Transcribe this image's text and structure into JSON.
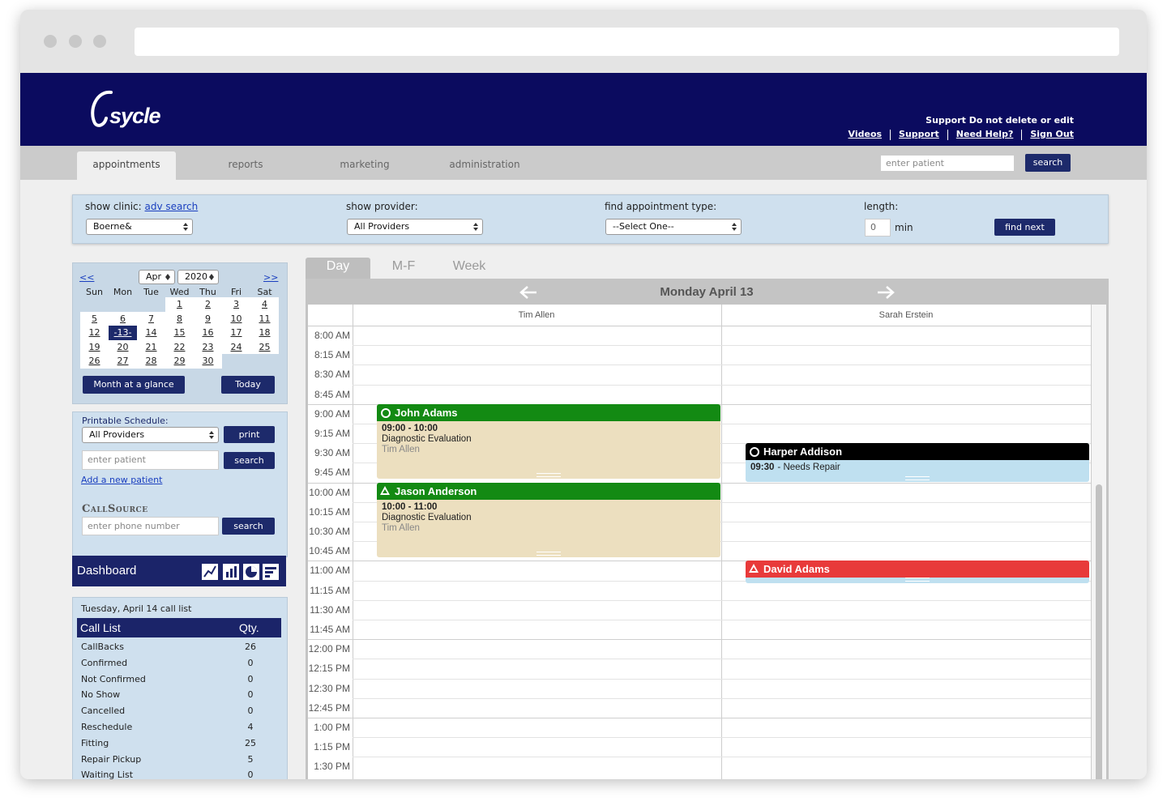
{
  "header": {
    "logo": "sycle",
    "notice": "Support Do not delete or edit",
    "links": [
      "Videos",
      "Support",
      "Need Help?",
      "Sign Out"
    ]
  },
  "nav": {
    "tabs": [
      "appointments",
      "reports",
      "marketing",
      "administration"
    ],
    "search_placeholder": "enter patient",
    "search_button": "search"
  },
  "filters": {
    "clinic_label": "show clinic:",
    "adv_search": "adv search",
    "clinic": "Boerne&",
    "provider_label": "show provider:",
    "provider": "All Providers",
    "type_label": "find appointment type:",
    "type": "--Select One--",
    "length_label": "length:",
    "length": "0",
    "length_unit": "min",
    "find_button": "find next"
  },
  "mini_calendar": {
    "prev": "<<",
    "next": ">>",
    "month": "Apr",
    "year": "2020",
    "weekdays": [
      "Sun",
      "Mon",
      "Tue",
      "Wed",
      "Thu",
      "Fri",
      "Sat"
    ],
    "weeks": [
      [
        null,
        null,
        null,
        "1",
        "2",
        "3",
        "4"
      ],
      [
        "5",
        "6",
        "7",
        "8",
        "9",
        "10",
        "11"
      ],
      [
        "12",
        "-13-",
        "14",
        "15",
        "16",
        "17",
        "18"
      ],
      [
        "19",
        "20",
        "21",
        "22",
        "23",
        "24",
        "25"
      ],
      [
        "26",
        "27",
        "28",
        "29",
        "30",
        null,
        null
      ]
    ],
    "month_button": "Month at a glance",
    "today_button": "Today"
  },
  "printable": {
    "label": "Printable Schedule:",
    "provider": "All Providers",
    "print_button": "print",
    "patient_placeholder": "enter patient",
    "search_button": "search",
    "add_patient": "Add a new patient",
    "callsource_logo": "CallSource",
    "phone_placeholder": "enter phone number",
    "phone_search_button": "search"
  },
  "dashboard": {
    "title": "Dashboard"
  },
  "call_list": {
    "date": "Tuesday, April 14 call list",
    "headers": [
      "Call List",
      "Qty."
    ],
    "rows": [
      [
        "CallBacks",
        26
      ],
      [
        "Confirmed",
        0
      ],
      [
        "Not Confirmed",
        0
      ],
      [
        "No Show",
        0
      ],
      [
        "Cancelled",
        0
      ],
      [
        "Reschedule",
        4
      ],
      [
        "Fitting",
        25
      ],
      [
        "Repair Pickup",
        5
      ],
      [
        "Waiting List",
        0
      ]
    ]
  },
  "schedule": {
    "views": [
      "Day",
      "M-F",
      "Week"
    ],
    "date": "Monday April 13",
    "providers": [
      "Tim Allen",
      "Sarah Erstein"
    ],
    "times": [
      "8:00 AM",
      "8:15 AM",
      "8:30 AM",
      "8:45 AM",
      "9:00 AM",
      "9:15 AM",
      "9:30 AM",
      "9:45 AM",
      "10:00 AM",
      "10:15 AM",
      "10:30 AM",
      "10:45 AM",
      "11:00 AM",
      "11:15 AM",
      "11:30 AM",
      "11:45 AM",
      "12:00 PM",
      "12:15 PM",
      "12:30 PM",
      "12:45 PM",
      "1:00 PM",
      "1:15 PM",
      "1:30 PM"
    ],
    "appointments": [
      {
        "patient": "John Adams",
        "time": "09:00 - 10:00",
        "type": "Diagnostic Evaluation",
        "provider": "Tim Allen"
      },
      {
        "patient": "Jason Anderson",
        "time": "10:00 - 11:00",
        "type": "Diagnostic Evaluation",
        "provider": "Tim Allen"
      },
      {
        "patient": "Harper Addison",
        "time": "09:30",
        "detail": "- Needs Repair"
      },
      {
        "patient": "David Adams"
      }
    ]
  }
}
